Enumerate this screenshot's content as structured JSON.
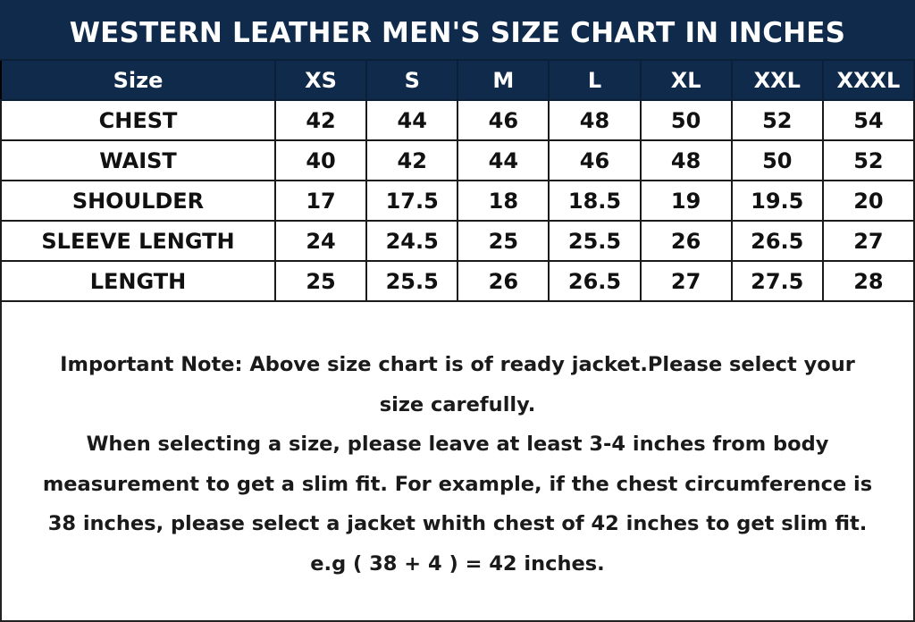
{
  "title": "WESTERN LEATHER MEN'S SIZE CHART IN INCHES",
  "table": {
    "header": [
      "Size",
      "XS",
      "S",
      "M",
      "L",
      "XL",
      "XXL",
      "XXXL"
    ],
    "rows": [
      [
        "CHEST",
        "42",
        "44",
        "46",
        "48",
        "50",
        "52",
        "54"
      ],
      [
        "WAIST",
        "40",
        "42",
        "44",
        "46",
        "48",
        "50",
        "52"
      ],
      [
        "SHOULDER",
        "17",
        "17.5",
        "18",
        "18.5",
        "19",
        "19.5",
        "20"
      ],
      [
        "SLEEVE LENGTH",
        "24",
        "24.5",
        "25",
        "25.5",
        "26",
        "26.5",
        "27"
      ],
      [
        "LENGTH",
        "25",
        "25.5",
        "26",
        "26.5",
        "27",
        "27.5",
        "28"
      ]
    ]
  },
  "note": {
    "lines": [
      "Important Note: Above size chart is of ready jacket.Please select your",
      "size carefully.",
      "When selecting a size, please leave at least 3-4 inches from body",
      "measurement to get a slim fit. For example, if the chest circumference is",
      "38 inches, please select a jacket whith chest of 42 inches to get slim fit.",
      "e.g ( 38 + 4 ) = 42 inches."
    ]
  },
  "colors": {
    "header_bg": "#0f2a4a",
    "header_text": "#ffffff",
    "body_text": "#111111"
  }
}
